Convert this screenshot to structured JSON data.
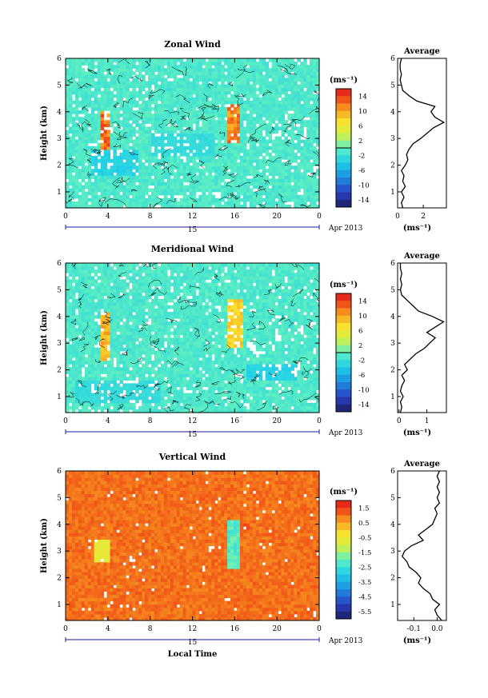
{
  "chart_data": [
    {
      "type": "heatmap",
      "title": "Zonal Wind",
      "ylabel": "Height (km)",
      "xticks": [
        "0",
        "4",
        "8",
        "12",
        "16",
        "20",
        "0"
      ],
      "yticks": [
        "1",
        "2",
        "3",
        "4",
        "5",
        "6"
      ],
      "xlim": [
        0,
        24
      ],
      "ylim": [
        0.4,
        6.0
      ],
      "date_label": "15",
      "date_suffix": "Apr 2013",
      "colorbar": {
        "unit": "(ms⁻¹)",
        "labels": [
          "14",
          "10",
          "6",
          "2",
          "-2",
          "-6",
          "-10",
          "-14"
        ],
        "range": [
          -16,
          16
        ]
      },
      "background_value": -1,
      "features": [
        {
          "t0": 3.4,
          "t1": 4.2,
          "z0": 2.5,
          "z1": 4.1,
          "value": 14
        },
        {
          "t0": 15.3,
          "t1": 16.6,
          "z0": 2.8,
          "z1": 4.3,
          "value": 13
        },
        {
          "t0": 2.5,
          "t1": 6.8,
          "z0": 1.6,
          "z1": 2.6,
          "value": -4
        },
        {
          "t0": 8.0,
          "t1": 14.0,
          "z0": 2.3,
          "z1": 3.2,
          "value": -3
        }
      ],
      "profile": {
        "title": "Average",
        "xlabel": "(ms⁻¹)",
        "xticks": [
          "0",
          "2"
        ],
        "xlim": [
          0,
          3.8
        ],
        "heights": [
          0.4,
          0.6,
          0.8,
          1.0,
          1.2,
          1.4,
          1.6,
          1.8,
          2.0,
          2.2,
          2.4,
          2.6,
          2.8,
          3.0,
          3.2,
          3.4,
          3.6,
          3.8,
          4.0,
          4.2,
          4.4,
          4.6,
          4.8,
          5.0,
          5.2,
          5.4,
          5.6,
          5.8,
          6.0
        ],
        "values": [
          0.4,
          0.3,
          0.5,
          0.3,
          0.6,
          0.4,
          0.5,
          0.3,
          0.6,
          0.8,
          0.7,
          0.9,
          1.2,
          1.8,
          2.3,
          2.8,
          3.6,
          2.9,
          2.6,
          2.9,
          1.5,
          0.9,
          0.4,
          0.3,
          0.2,
          0.3,
          0.2,
          0.2,
          0.3
        ]
      }
    },
    {
      "type": "heatmap",
      "title": "Meridional Wind",
      "ylabel": "Height (km)",
      "xticks": [
        "0",
        "4",
        "8",
        "12",
        "16",
        "20",
        "0"
      ],
      "yticks": [
        "1",
        "2",
        "3",
        "4",
        "5",
        "6"
      ],
      "xlim": [
        0,
        24
      ],
      "ylim": [
        0.4,
        6.0
      ],
      "date_label": "15",
      "date_suffix": "Apr 2013",
      "colorbar": {
        "unit": "(ms⁻¹)",
        "labels": [
          "14",
          "10",
          "6",
          "2",
          "-2",
          "-6",
          "-10",
          "-14"
        ],
        "range": [
          -16,
          16
        ]
      },
      "background_value": -1,
      "features": [
        {
          "t0": 3.4,
          "t1": 4.2,
          "z0": 2.4,
          "z1": 4.2,
          "value": 11
        },
        {
          "t0": 15.3,
          "t1": 16.7,
          "z0": 2.8,
          "z1": 4.6,
          "value": 9
        },
        {
          "t0": 0.8,
          "t1": 9.0,
          "z0": 0.8,
          "z1": 1.6,
          "value": -3
        },
        {
          "t0": 17.0,
          "t1": 22.0,
          "z0": 1.6,
          "z1": 2.2,
          "value": -4
        }
      ],
      "profile": {
        "title": "Average",
        "xlabel": "(ms⁻¹)",
        "xticks": [
          "0",
          "1"
        ],
        "xlim": [
          -0.05,
          1.7
        ],
        "heights": [
          0.4,
          0.6,
          0.8,
          1.0,
          1.2,
          1.4,
          1.6,
          1.8,
          2.0,
          2.2,
          2.4,
          2.6,
          2.8,
          3.0,
          3.2,
          3.4,
          3.6,
          3.8,
          4.0,
          4.2,
          4.4,
          4.6,
          4.8,
          5.0,
          5.2,
          5.4,
          5.6,
          5.8,
          6.0
        ],
        "values": [
          0.05,
          0.1,
          0.05,
          0.15,
          0.05,
          0.1,
          0.2,
          0.1,
          0.3,
          0.2,
          0.4,
          0.6,
          0.9,
          1.1,
          1.3,
          1.0,
          1.3,
          1.6,
          1.2,
          0.7,
          0.5,
          0.3,
          0.1,
          0.05,
          0.1,
          0.05,
          0.1,
          0.05,
          0.05
        ]
      }
    },
    {
      "type": "heatmap",
      "title": "Vertical Wind",
      "ylabel": "Height (km)",
      "xlabel": "Local Time",
      "xticks": [
        "0",
        "4",
        "8",
        "12",
        "16",
        "20",
        "0"
      ],
      "yticks": [
        "1",
        "2",
        "3",
        "4",
        "5",
        "6"
      ],
      "xlim": [
        0,
        24
      ],
      "ylim": [
        0.4,
        6.0
      ],
      "date_label": "15",
      "date_suffix": "Apr 2013",
      "colorbar": {
        "unit": "(ms⁻¹)",
        "labels": [
          "1.5",
          "0.5",
          "-0.5",
          "-1.5",
          "-2.5",
          "-3.5",
          "-4.5",
          "-5.5"
        ],
        "range": [
          -6.0,
          2.0
        ]
      },
      "background_value": 1.0,
      "features": [
        {
          "t0": 15.4,
          "t1": 16.4,
          "z0": 2.3,
          "z1": 4.2,
          "value": -2.5
        },
        {
          "t0": 2.6,
          "t1": 4.2,
          "z0": 2.6,
          "z1": 3.4,
          "value": -0.8
        },
        {
          "t0": 16.6,
          "t1": 17.4,
          "z0": 3.8,
          "z1": 4.1,
          "value": 1.6
        }
      ],
      "profile": {
        "title": "Average",
        "xlabel": "(ms⁻¹)",
        "xticks": [
          "-0.1",
          "0.0"
        ],
        "xlim": [
          -0.17,
          0.04
        ],
        "heights": [
          0.4,
          0.6,
          0.8,
          1.0,
          1.2,
          1.4,
          1.6,
          1.8,
          2.0,
          2.2,
          2.4,
          2.6,
          2.8,
          3.0,
          3.2,
          3.4,
          3.6,
          3.8,
          4.0,
          4.2,
          4.4,
          4.6,
          4.8,
          5.0,
          5.2,
          5.4,
          5.6,
          5.8,
          6.0
        ],
        "values": [
          0.02,
          0.0,
          -0.01,
          0.01,
          -0.02,
          -0.03,
          -0.06,
          -0.08,
          -0.07,
          -0.09,
          -0.12,
          -0.13,
          -0.15,
          -0.14,
          -0.11,
          -0.06,
          -0.08,
          -0.05,
          -0.02,
          -0.01,
          0.0,
          -0.01,
          0.01,
          0.0,
          0.01,
          0.0,
          0.01,
          0.0,
          0.01
        ]
      }
    }
  ]
}
